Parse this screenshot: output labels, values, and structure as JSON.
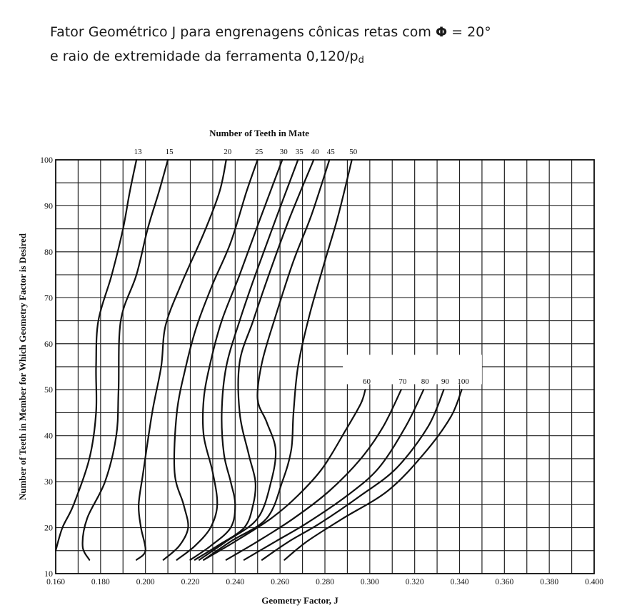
{
  "caption": {
    "line1_text": "Fator Geométrico J para engrenagens cônicas retas com ",
    "phi_symbol": "Φ",
    "line1_suffix": " = 20°",
    "line2_text": "e raio de extremidade da ferramenta 0,120/p",
    "line2_subscript": "d"
  },
  "chart_data": {
    "type": "line",
    "title": "Number of Teeth in Mate",
    "xlabel": "Geometry Factor, J",
    "ylabel": "Number of Teeth in Member for Which Geometry Factor is Desired",
    "xlim": [
      0.16,
      0.4
    ],
    "ylim": [
      10,
      100
    ],
    "x_ticks": [
      "0.160",
      "0.180",
      "0.200",
      "0.220",
      "0.240",
      "0.260",
      "0.280",
      "0.300",
      "0.320",
      "0.340",
      "0.360",
      "0.380",
      "0.400"
    ],
    "y_ticks": [
      "10",
      "20",
      "30",
      "40",
      "50",
      "60",
      "70",
      "80",
      "90",
      "100"
    ],
    "grid": true,
    "series": [
      {
        "name": "13",
        "points": [
          [
            0.16,
            15
          ],
          [
            0.163,
            20
          ],
          [
            0.168,
            25
          ],
          [
            0.175,
            35
          ],
          [
            0.178,
            45
          ],
          [
            0.178,
            55
          ],
          [
            0.179,
            65
          ],
          [
            0.185,
            75
          ],
          [
            0.19,
            85
          ],
          [
            0.193,
            93
          ],
          [
            0.196,
            100
          ]
        ]
      },
      {
        "name": "15",
        "points": [
          [
            0.175,
            13
          ],
          [
            0.172,
            16
          ],
          [
            0.174,
            22
          ],
          [
            0.182,
            30
          ],
          [
            0.187,
            40
          ],
          [
            0.188,
            50
          ],
          [
            0.189,
            65
          ],
          [
            0.196,
            75
          ],
          [
            0.201,
            85
          ],
          [
            0.206,
            93
          ],
          [
            0.21,
            100
          ]
        ]
      },
      {
        "name": "20",
        "points": [
          [
            0.196,
            13
          ],
          [
            0.2,
            15
          ],
          [
            0.198,
            20
          ],
          [
            0.197,
            25
          ],
          [
            0.199,
            32
          ],
          [
            0.203,
            45
          ],
          [
            0.207,
            55
          ],
          [
            0.209,
            64
          ],
          [
            0.216,
            73
          ],
          [
            0.226,
            84
          ],
          [
            0.233,
            93
          ],
          [
            0.236,
            100
          ]
        ]
      },
      {
        "name": "25",
        "points": [
          [
            0.208,
            13
          ],
          [
            0.215,
            16
          ],
          [
            0.219,
            20
          ],
          [
            0.217,
            25
          ],
          [
            0.213,
            32
          ],
          [
            0.214,
            45
          ],
          [
            0.218,
            55
          ],
          [
            0.223,
            64
          ],
          [
            0.23,
            73
          ],
          [
            0.238,
            82
          ],
          [
            0.245,
            93
          ],
          [
            0.25,
            100
          ]
        ]
      },
      {
        "name": "30",
        "points": [
          [
            0.214,
            13
          ],
          [
            0.222,
            16
          ],
          [
            0.229,
            20
          ],
          [
            0.232,
            25
          ],
          [
            0.23,
            32
          ],
          [
            0.226,
            40
          ],
          [
            0.226,
            48
          ],
          [
            0.229,
            56
          ],
          [
            0.234,
            65
          ],
          [
            0.242,
            75
          ],
          [
            0.251,
            87
          ],
          [
            0.261,
            100
          ]
        ]
      },
      {
        "name": "35",
        "points": [
          [
            0.22,
            13
          ],
          [
            0.229,
            16
          ],
          [
            0.238,
            20
          ],
          [
            0.24,
            25
          ],
          [
            0.238,
            30
          ],
          [
            0.235,
            36
          ],
          [
            0.234,
            45
          ],
          [
            0.236,
            55
          ],
          [
            0.242,
            65
          ],
          [
            0.249,
            75
          ],
          [
            0.258,
            87
          ],
          [
            0.268,
            100
          ]
        ]
      },
      {
        "name": "40",
        "points": [
          [
            0.222,
            13
          ],
          [
            0.232,
            16
          ],
          [
            0.244,
            20
          ],
          [
            0.248,
            25
          ],
          [
            0.249,
            30
          ],
          [
            0.246,
            36
          ],
          [
            0.242,
            45
          ],
          [
            0.242,
            56
          ],
          [
            0.248,
            65
          ],
          [
            0.255,
            75
          ],
          [
            0.264,
            87
          ],
          [
            0.275,
            100
          ]
        ]
      },
      {
        "name": "45",
        "points": [
          [
            0.224,
            13
          ],
          [
            0.236,
            17
          ],
          [
            0.25,
            22
          ],
          [
            0.256,
            30
          ],
          [
            0.258,
            37
          ],
          [
            0.254,
            43
          ],
          [
            0.25,
            48
          ],
          [
            0.252,
            56
          ],
          [
            0.258,
            66
          ],
          [
            0.266,
            78
          ],
          [
            0.274,
            88
          ],
          [
            0.282,
            100
          ]
        ]
      },
      {
        "name": "50",
        "points": [
          [
            0.226,
            13
          ],
          [
            0.238,
            17
          ],
          [
            0.254,
            22
          ],
          [
            0.261,
            30
          ],
          [
            0.265,
            37
          ],
          [
            0.266,
            45
          ],
          [
            0.268,
            55
          ],
          [
            0.273,
            66
          ],
          [
            0.28,
            78
          ],
          [
            0.286,
            88
          ],
          [
            0.292,
            100
          ]
        ]
      },
      {
        "name": "60",
        "points": [
          [
            0.226,
            13
          ],
          [
            0.24,
            17
          ],
          [
            0.256,
            22
          ],
          [
            0.268,
            27
          ],
          [
            0.279,
            33
          ],
          [
            0.289,
            41
          ],
          [
            0.296,
            47
          ],
          [
            0.298,
            50
          ]
        ]
      },
      {
        "name": "70",
        "points": [
          [
            0.236,
            13
          ],
          [
            0.25,
            17
          ],
          [
            0.266,
            22
          ],
          [
            0.282,
            28
          ],
          [
            0.296,
            35
          ],
          [
            0.306,
            42
          ],
          [
            0.314,
            50
          ]
        ]
      },
      {
        "name": "80",
        "points": [
          [
            0.244,
            13
          ],
          [
            0.258,
            17
          ],
          [
            0.272,
            21
          ],
          [
            0.29,
            27
          ],
          [
            0.304,
            33
          ],
          [
            0.316,
            42
          ],
          [
            0.324,
            50
          ]
        ]
      },
      {
        "name": "90",
        "points": [
          [
            0.252,
            13
          ],
          [
            0.264,
            17
          ],
          [
            0.278,
            21
          ],
          [
            0.296,
            27
          ],
          [
            0.312,
            33
          ],
          [
            0.326,
            42
          ],
          [
            0.333,
            50
          ]
        ]
      },
      {
        "name": "100",
        "points": [
          [
            0.262,
            13
          ],
          [
            0.272,
            17
          ],
          [
            0.288,
            22
          ],
          [
            0.308,
            28
          ],
          [
            0.324,
            36
          ],
          [
            0.336,
            44
          ],
          [
            0.341,
            50
          ]
        ]
      }
    ]
  }
}
